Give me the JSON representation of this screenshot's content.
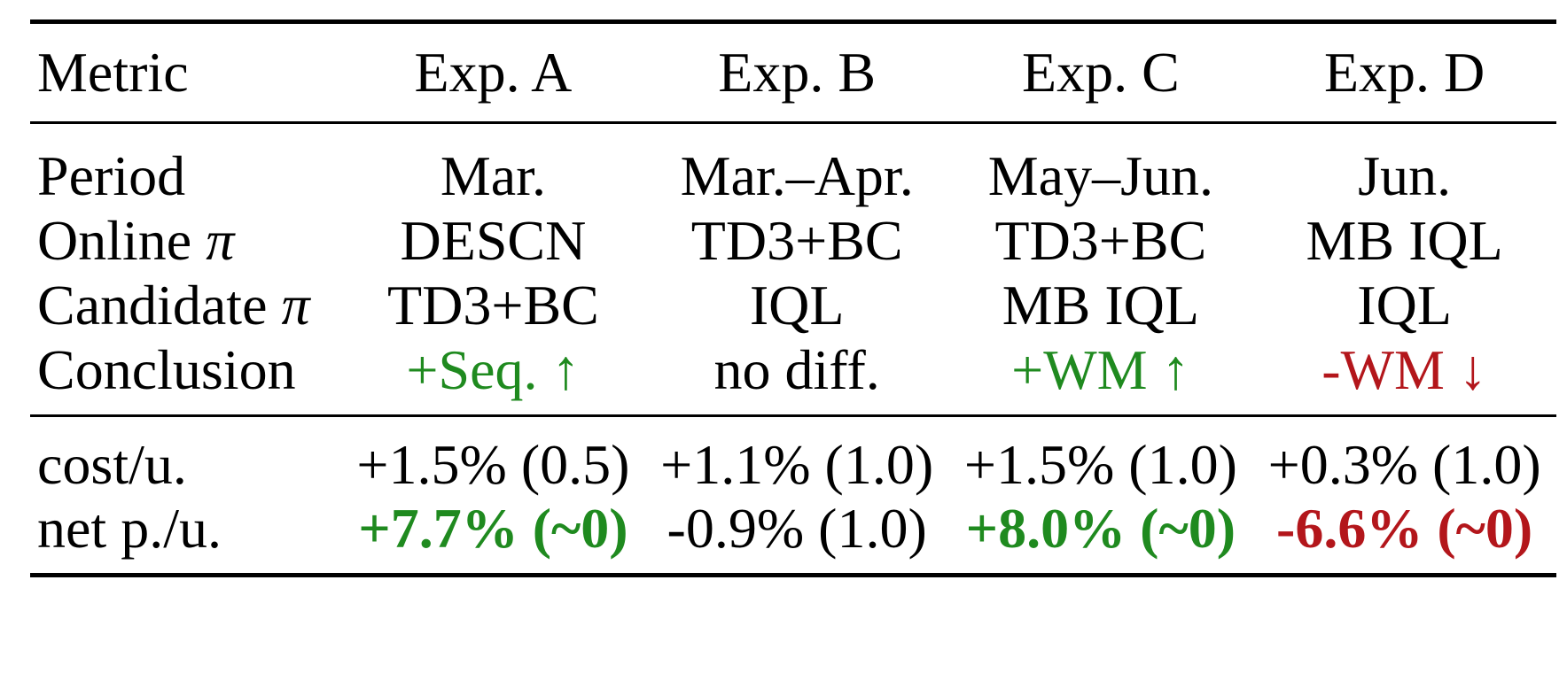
{
  "table": {
    "columns": [
      "Metric",
      "Exp. A",
      "Exp. B",
      "Exp. C",
      "Exp. D"
    ],
    "info_rows": [
      {
        "label": "Period",
        "values": [
          "Mar.",
          "Mar.–Apr.",
          "May–Jun.",
          "Jun."
        ]
      },
      {
        "label": "Online",
        "label_symbol": "π",
        "values": [
          "DESCN",
          "TD3+BC",
          "TD3+BC",
          "MB IQL"
        ]
      },
      {
        "label": "Candidate",
        "label_symbol": "π",
        "values": [
          "TD3+BC",
          "IQL",
          "MB IQL",
          "IQL"
        ]
      },
      {
        "label": "Conclusion",
        "values": [
          "+Seq. ↑",
          "no diff.",
          "+WM ↑",
          "-WM ↓"
        ]
      }
    ],
    "result_rows": [
      {
        "label": "cost/u.",
        "values": [
          "+1.5% (0.5)",
          "+1.1% (1.0)",
          "+1.5% (1.0)",
          "+0.3% (1.0)"
        ]
      },
      {
        "label": "net p./u.",
        "values": [
          "+7.7% (~0)",
          "-0.9% (1.0)",
          "+8.0% (~0)",
          "-6.6% (~0)"
        ]
      }
    ]
  },
  "colors": {
    "positive": "#1f8a1f",
    "negative": "#b3161b",
    "text": "#000000"
  }
}
